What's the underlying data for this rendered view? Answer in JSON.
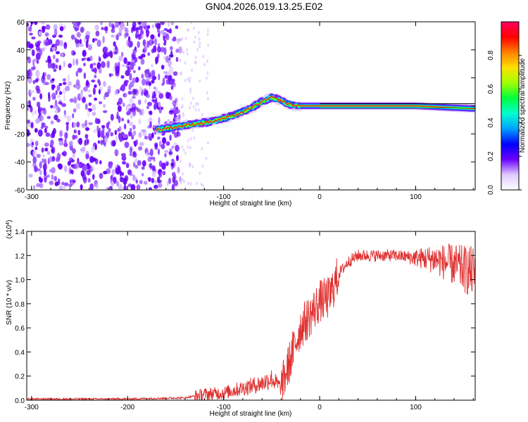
{
  "title": "GN04.2026.019.13.25.E02",
  "chart_data": [
    {
      "type": "heatmap",
      "xlabel": "Height of straight line (km)",
      "ylabel": "Frequency (Hz)",
      "xlim": [
        -305,
        162
      ],
      "ylim": [
        -60,
        60
      ],
      "xticks": [
        -300,
        -200,
        -100,
        0,
        100
      ],
      "yticks": [
        -60,
        -40,
        -20,
        0,
        20,
        40,
        60
      ],
      "colorbar": {
        "label": "Normalized spectral amplitude",
        "range": [
          0.0,
          1.0
        ],
        "ticks": [
          "0.0",
          "0.2",
          "0.4",
          "0.6",
          "0.8"
        ],
        "colors": [
          "#ffffff",
          "#e0c8ff",
          "#6a00ff",
          "#0000ff",
          "#00a0ff",
          "#00ffd0",
          "#00ff40",
          "#a0ff00",
          "#ffe000",
          "#ff8000",
          "#ff0000",
          "#ff0060"
        ]
      },
      "ridge_centerline": {
        "x": [
          -170,
          -150,
          -130,
          -110,
          -90,
          -75,
          -60,
          -50,
          -45,
          -35,
          -25,
          -15,
          0,
          50,
          100,
          130,
          162
        ],
        "y": [
          -17,
          -15,
          -13,
          -11,
          -7,
          -3,
          3,
          6,
          5,
          2,
          0,
          0,
          0,
          0,
          0,
          -1,
          -2
        ]
      },
      "noise_region_x": [
        -305,
        -145
      ]
    },
    {
      "type": "line",
      "xlabel": "Height of straight line (km)",
      "ylabel": "SNR (10 * v/v)",
      "y_multiplier": "(x10^4)",
      "xlim": [
        -305,
        162
      ],
      "ylim": [
        0,
        1.4
      ],
      "xticks": [
        -300,
        -200,
        -100,
        0,
        100
      ],
      "yticks": [
        "0.0",
        "0.2",
        "0.4",
        "0.6",
        "0.8",
        "1.0",
        "1.2",
        "1.4"
      ],
      "series": [
        {
          "color": "#e03030",
          "x": [
            -305,
            -200,
            -140,
            -120,
            -100,
            -80,
            -60,
            -50,
            -40,
            -30,
            -20,
            -10,
            0,
            10,
            20,
            30,
            40,
            60,
            80,
            100,
            120,
            140,
            162
          ],
          "y": [
            0.01,
            0.01,
            0.02,
            0.05,
            0.06,
            0.1,
            0.14,
            0.18,
            0.1,
            0.35,
            0.6,
            0.7,
            0.82,
            0.85,
            1.05,
            1.15,
            1.2,
            1.2,
            1.2,
            1.18,
            1.17,
            1.12,
            1.05
          ]
        }
      ]
    }
  ]
}
